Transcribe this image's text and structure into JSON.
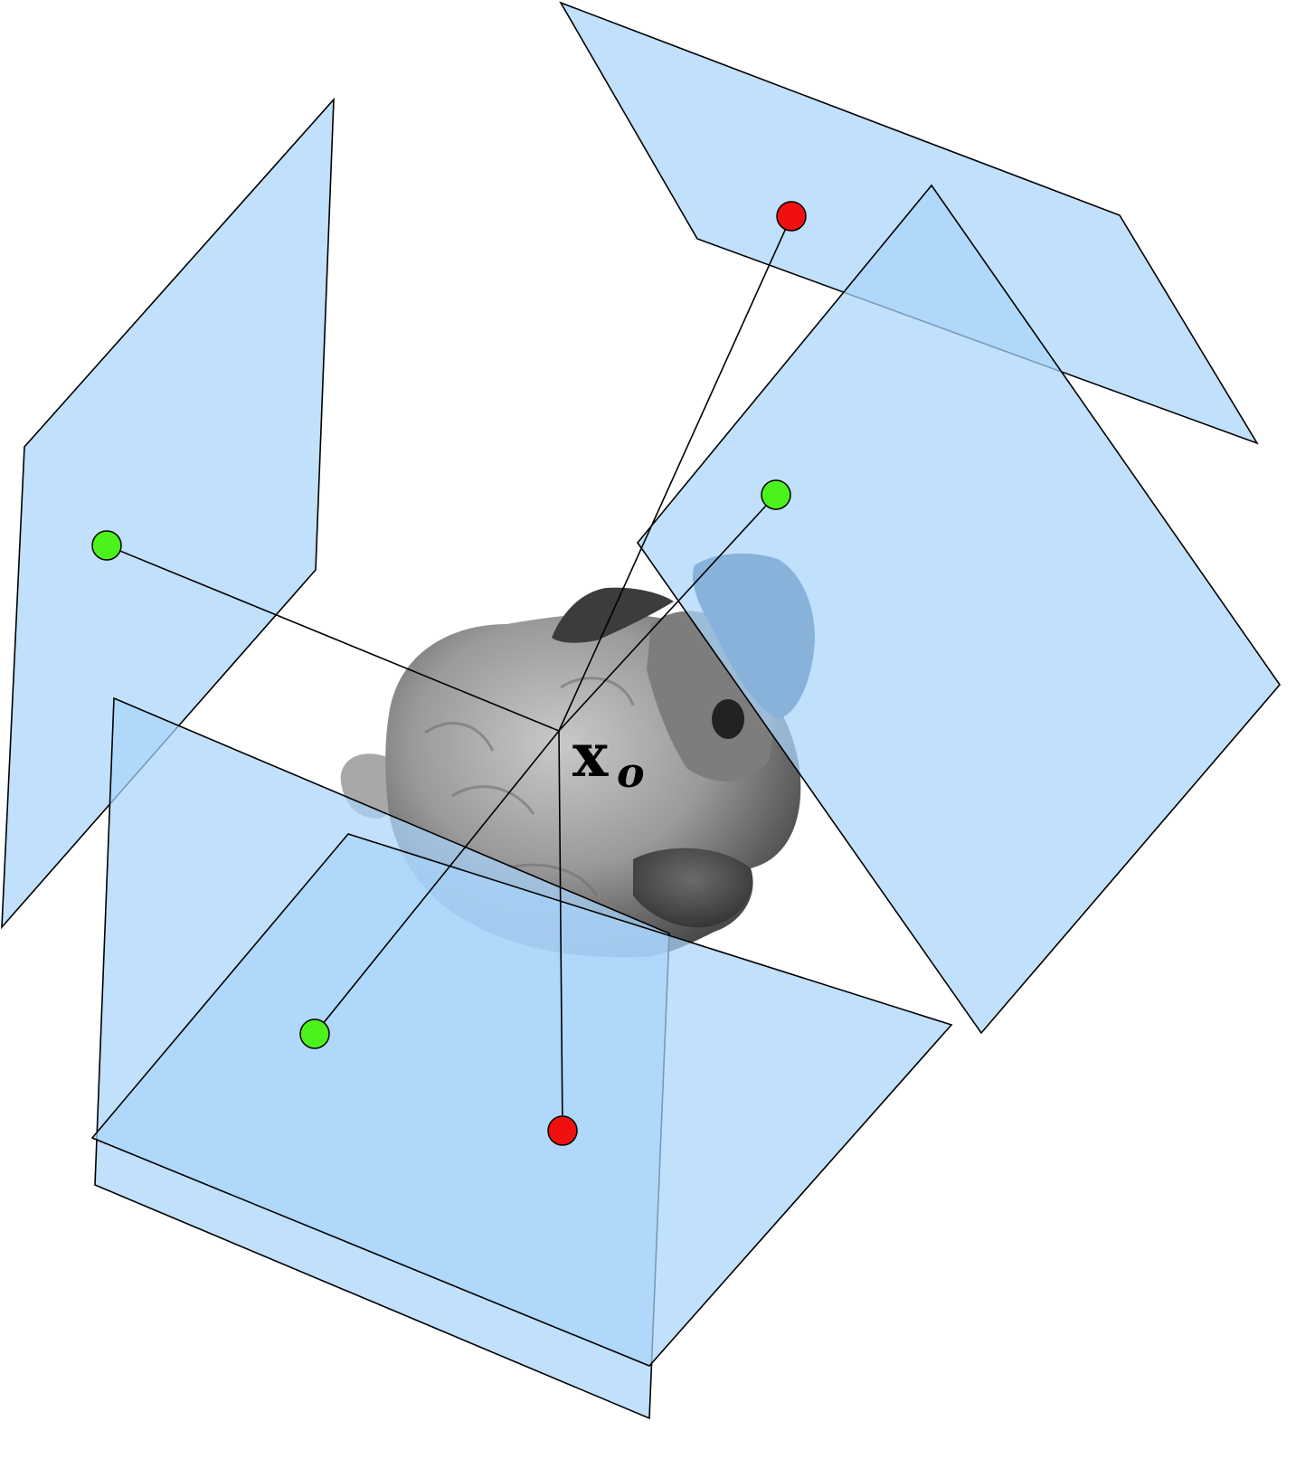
{
  "diagram": {
    "center_label": {
      "main": "x",
      "subscript": "o"
    },
    "colors": {
      "plane_fill": "#a9d4fb",
      "plane_stroke": "#000000",
      "point_green": "#4cf21c",
      "point_red": "#f01010",
      "object_gray": "#8c8c8c"
    },
    "object": {
      "icon": "bunny-mesh-icon"
    },
    "point_counts": {
      "green": 3,
      "red": 2
    }
  }
}
